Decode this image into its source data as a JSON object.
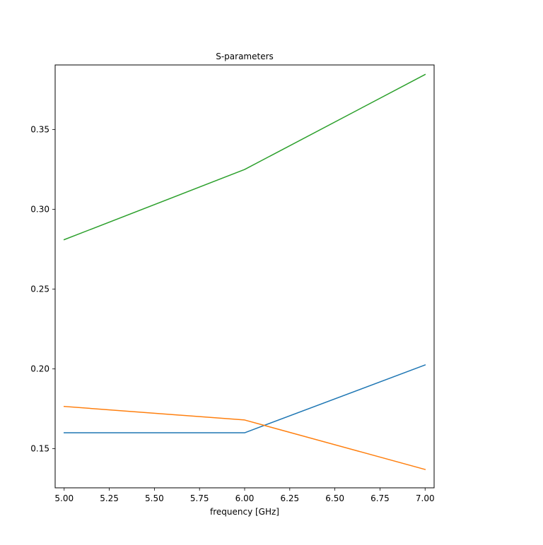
{
  "chart_data": {
    "type": "line",
    "title": "S-parameters",
    "xlabel": "frequency [GHz]",
    "ylabel": "",
    "xlim": [
      4.95,
      7.05
    ],
    "ylim": [
      0.1255,
      0.3905
    ],
    "x_ticks": [
      5.0,
      5.25,
      5.5,
      5.75,
      6.0,
      6.25,
      6.5,
      6.75,
      7.0
    ],
    "x_tick_labels": [
      "5.00",
      "5.25",
      "5.50",
      "5.75",
      "6.00",
      "6.25",
      "6.50",
      "6.75",
      "7.00"
    ],
    "y_ticks": [
      0.15,
      0.2,
      0.25,
      0.3,
      0.35
    ],
    "y_tick_labels": [
      "0.15",
      "0.20",
      "0.25",
      "0.30",
      "0.35"
    ],
    "grid": false,
    "legend": "none",
    "x": [
      5.0,
      6.0,
      7.0
    ],
    "series": [
      {
        "color": "#1f77b4",
        "values": [
          0.16,
          0.16,
          0.2025
        ]
      },
      {
        "color": "#ff7f0e",
        "values": [
          0.1765,
          0.168,
          0.137
        ]
      },
      {
        "color": "#2ca02c",
        "values": [
          0.281,
          0.325,
          0.3845
        ]
      }
    ]
  }
}
